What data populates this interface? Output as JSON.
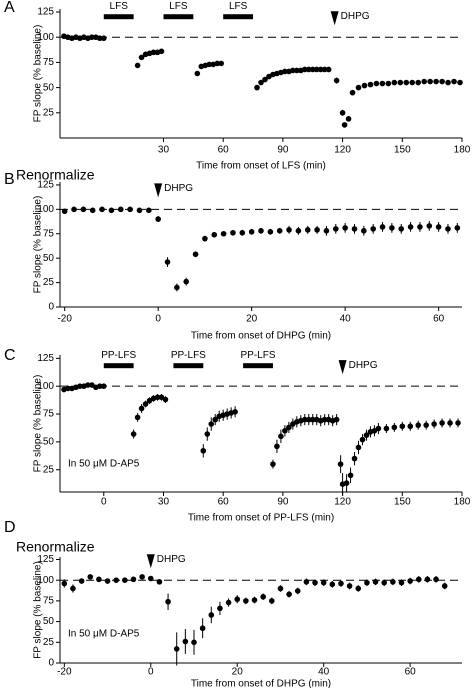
{
  "chart_data": [
    {
      "type": "scatter",
      "panel_label": "A",
      "x_label": "Time from onset of LFS (min)",
      "y_label": "FP slope (% baseline)",
      "color": "#000000",
      "xlim": [
        -22,
        180
      ],
      "ylim": [
        0,
        128
      ],
      "xticks": [
        30,
        60,
        90,
        120,
        150,
        180
      ],
      "yticks": [
        25,
        50,
        75,
        100,
        125
      ],
      "reference_line": 100,
      "stimuli": [
        {
          "label": "LFS",
          "start": 0,
          "end": 15
        },
        {
          "label": "LFS",
          "start": 30,
          "end": 45
        },
        {
          "label": "LFS",
          "start": 60,
          "end": 75
        }
      ],
      "arrow": {
        "label": "DHPG",
        "x": 116
      },
      "x": [
        -20,
        -18,
        -16,
        -14,
        -12,
        -10,
        -8,
        -6,
        -4,
        -2,
        0,
        17,
        19,
        21,
        23,
        25,
        27,
        29,
        47,
        49,
        51,
        53,
        55,
        57,
        59,
        77,
        79,
        81,
        83,
        85,
        87,
        89,
        91,
        93,
        95,
        97,
        99,
        101,
        103,
        105,
        107,
        109,
        111,
        113,
        117,
        120,
        121,
        123,
        125,
        128,
        131,
        134,
        137,
        140,
        143,
        146,
        149,
        152,
        155,
        158,
        161,
        164,
        167,
        170,
        173,
        176,
        179
      ],
      "values": [
        101,
        100,
        99,
        100,
        99,
        100,
        99,
        100,
        100,
        99,
        99,
        72,
        80,
        83,
        84,
        85,
        85,
        86,
        64,
        71,
        72,
        73,
        73,
        74,
        74,
        50,
        55,
        58,
        61,
        63,
        64,
        65,
        66,
        66,
        67,
        67,
        67,
        68,
        68,
        68,
        68,
        68,
        68,
        68,
        57,
        25,
        13,
        19,
        45,
        50,
        52,
        53,
        54,
        54,
        54,
        55,
        55,
        55,
        55,
        55,
        56,
        56,
        56,
        56,
        55,
        56,
        55
      ],
      "errors": [
        1,
        1,
        1,
        1,
        1,
        1,
        1,
        1,
        1,
        1,
        1,
        2,
        1,
        1,
        1,
        1,
        1,
        1,
        2,
        1,
        1,
        1,
        1,
        1,
        1,
        2,
        2,
        1,
        1,
        1,
        1,
        1,
        1,
        1,
        1,
        1,
        1,
        1,
        1,
        1,
        1,
        1,
        1,
        1,
        3,
        3,
        2,
        2,
        2,
        2,
        1,
        1,
        1,
        1,
        1,
        1,
        1,
        1,
        1,
        1,
        1,
        1,
        1,
        1,
        1,
        1,
        1
      ]
    },
    {
      "type": "scatter",
      "panel_label": "B",
      "title": "Renormalize",
      "x_label": "Time from onset of DHPG (min)",
      "y_label": "FP slope (% baseline)",
      "color": "#000000",
      "xlim": [
        -21,
        65
      ],
      "ylim": [
        0,
        128
      ],
      "xticks": [
        -20,
        0,
        20,
        40,
        60
      ],
      "yticks": [
        0,
        25,
        50,
        75,
        100,
        125
      ],
      "reference_line": 100,
      "arrow": {
        "label": "DHPG",
        "x": 0
      },
      "x": [
        -20,
        -18,
        -16,
        -14,
        -12,
        -10,
        -8,
        -6,
        -4,
        -2,
        0,
        2,
        4,
        6,
        8,
        10,
        12,
        14,
        16,
        18,
        20,
        22,
        24,
        26,
        28,
        30,
        32,
        34,
        36,
        38,
        40,
        42,
        44,
        46,
        48,
        50,
        52,
        54,
        56,
        58,
        60,
        62,
        64
      ],
      "values": [
        98,
        100,
        100,
        99,
        100,
        99,
        100,
        100,
        99,
        99,
        90,
        46,
        20,
        26,
        54,
        70,
        74,
        75,
        76,
        76,
        77,
        78,
        77,
        78,
        79,
        78,
        79,
        79,
        78,
        80,
        81,
        80,
        78,
        80,
        82,
        81,
        80,
        82,
        82,
        83,
        82,
        80,
        81
      ],
      "errors": [
        2,
        2,
        2,
        2,
        2,
        2,
        2,
        2,
        2,
        2,
        3,
        5,
        4,
        4,
        3,
        3,
        2,
        2,
        2,
        3,
        3,
        3,
        3,
        3,
        4,
        4,
        4,
        4,
        5,
        5,
        5,
        5,
        5,
        5,
        5,
        5,
        5,
        5,
        5,
        5,
        5,
        5,
        5
      ]
    },
    {
      "type": "scatter",
      "panel_label": "C",
      "x_label": "Time from onset of PP-LFS (min)",
      "y_label": "FP slope (% baseline)",
      "color": "#000000",
      "xlim": [
        -22,
        180
      ],
      "ylim": [
        5,
        128
      ],
      "xticks": [
        0,
        30,
        60,
        90,
        120,
        150,
        180
      ],
      "yticks": [
        25,
        50,
        75,
        100,
        125
      ],
      "reference_line": 100,
      "stimuli": [
        {
          "label": "PP-LFS",
          "start": 0,
          "end": 15
        },
        {
          "label": "PP-LFS",
          "start": 35,
          "end": 50
        },
        {
          "label": "PP-LFS",
          "start": 70,
          "end": 85
        }
      ],
      "arrow": {
        "label": "DHPG",
        "x": 120
      },
      "note": "In 50 μM D-AP5",
      "x": [
        -20,
        -18,
        -16,
        -14,
        -12,
        -10,
        -8,
        -6,
        -4,
        -2,
        0,
        15,
        17,
        19,
        21,
        23,
        25,
        27,
        29,
        31,
        50,
        52,
        54,
        56,
        58,
        60,
        62,
        64,
        66,
        85,
        87,
        89,
        91,
        93,
        95,
        97,
        99,
        101,
        103,
        105,
        107,
        109,
        111,
        113,
        115,
        117,
        119,
        120,
        122,
        124,
        126,
        128,
        130,
        132,
        134,
        136,
        138,
        142,
        146,
        150,
        154,
        158,
        162,
        166,
        170,
        174,
        178
      ],
      "values": [
        97,
        98,
        98,
        99,
        100,
        100,
        101,
        101,
        99,
        100,
        100,
        57,
        72,
        80,
        84,
        87,
        89,
        90,
        90,
        88,
        42,
        57,
        66,
        70,
        73,
        74,
        75,
        76,
        77,
        30,
        46,
        55,
        60,
        63,
        66,
        68,
        69,
        70,
        70,
        70,
        70,
        69,
        70,
        70,
        69,
        70,
        30,
        12,
        13,
        20,
        35,
        45,
        52,
        56,
        59,
        60,
        62,
        62,
        63,
        64,
        64,
        65,
        65,
        66,
        67,
        67,
        67
      ],
      "errors": [
        2,
        2,
        2,
        2,
        2,
        2,
        2,
        2,
        2,
        2,
        2,
        4,
        4,
        4,
        3,
        3,
        3,
        3,
        3,
        3,
        6,
        6,
        6,
        5,
        5,
        5,
        5,
        5,
        5,
        4,
        6,
        6,
        5,
        5,
        5,
        5,
        5,
        5,
        5,
        5,
        5,
        5,
        5,
        5,
        5,
        5,
        8,
        10,
        8,
        7,
        6,
        6,
        5,
        5,
        5,
        5,
        5,
        4,
        4,
        4,
        4,
        4,
        4,
        4,
        4,
        4,
        4
      ]
    },
    {
      "type": "scatter",
      "panel_label": "D",
      "title": "Renormalize",
      "x_label": "Time from onset of DHPG (min)",
      "y_label": "FP slope (% baseline)",
      "color": "#000000",
      "xlim": [
        -21,
        72
      ],
      "ylim": [
        0,
        128
      ],
      "xticks": [
        -20,
        0,
        20,
        40,
        60
      ],
      "yticks": [
        0,
        25,
        50,
        75,
        100,
        125
      ],
      "reference_line": 100,
      "arrow": {
        "label": "DHPG",
        "x": 0
      },
      "note": "In 50 μM D-AP5",
      "x": [
        -20,
        -18,
        -16,
        -14,
        -12,
        -10,
        -8,
        -6,
        -4,
        -2,
        0,
        2,
        4,
        6,
        8,
        10,
        12,
        14,
        16,
        18,
        20,
        22,
        24,
        26,
        28,
        30,
        32,
        34,
        36,
        38,
        40,
        42,
        44,
        46,
        48,
        50,
        52,
        54,
        56,
        58,
        60,
        62,
        64,
        66,
        68
      ],
      "values": [
        96,
        90,
        99,
        104,
        101,
        99,
        100,
        100,
        101,
        104,
        102,
        98,
        74,
        17,
        26,
        25,
        42,
        58,
        66,
        73,
        77,
        75,
        76,
        80,
        75,
        90,
        83,
        87,
        98,
        97,
        97,
        95,
        96,
        93,
        90,
        97,
        98,
        97,
        98,
        97,
        99,
        101,
        101,
        101,
        93
      ],
      "errors": [
        5,
        5,
        3,
        3,
        2,
        2,
        2,
        2,
        2,
        3,
        2,
        3,
        10,
        20,
        15,
        15,
        12,
        10,
        8,
        5,
        5,
        4,
        4,
        4,
        4,
        4,
        4,
        4,
        4,
        4,
        4,
        4,
        4,
        4,
        4,
        4,
        4,
        4,
        4,
        4,
        4,
        4,
        4,
        4,
        4
      ]
    }
  ]
}
